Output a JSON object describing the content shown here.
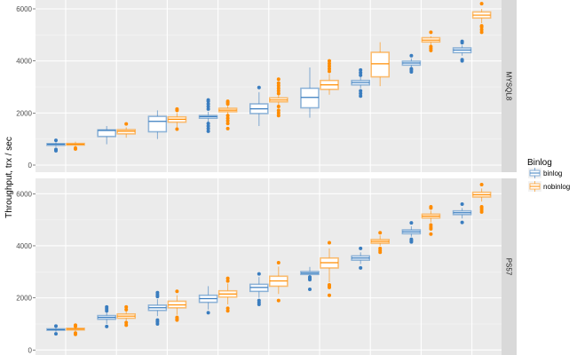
{
  "chart_data": {
    "type": "boxplot",
    "ylabel": "Throughput, trx / sec",
    "ylim": [
      -300,
      6400
    ],
    "yticks": [
      0,
      2000,
      4000,
      6000
    ],
    "grid": true,
    "legend": {
      "title": "Binlog",
      "position": "right",
      "entries": [
        "binlog",
        "nobinlog"
      ]
    },
    "colors": {
      "binlog": "#3a7dbf",
      "nobinlog": "#ff8c00",
      "panel_bg": "#ebebeb",
      "strip_bg": "#d9d9d9"
    },
    "categories_count": 9,
    "stat_order": [
      "lower_whisker",
      "q1",
      "median",
      "q3",
      "upper_whisker"
    ],
    "panels": [
      {
        "name": "MYSQL8",
        "groups": [
          {
            "binlog": {
              "stats": [
                700,
                760,
                800,
                820,
                880
              ],
              "outliers": [
                550,
                600,
                950
              ]
            },
            "nobinlog": {
              "stats": [
                720,
                770,
                800,
                830,
                900
              ],
              "outliers": [
                620,
                650
              ]
            }
          },
          {
            "binlog": {
              "stats": [
                800,
                1100,
                1330,
                1350,
                1500
              ],
              "outliers": []
            },
            "nobinlog": {
              "stats": [
                1050,
                1200,
                1300,
                1360,
                1450
              ],
              "outliers": [
                1580
              ]
            }
          },
          {
            "binlog": {
              "stats": [
                1000,
                1280,
                1680,
                1870,
                2100
              ],
              "outliers": []
            },
            "nobinlog": {
              "stats": [
                1450,
                1650,
                1760,
                1850,
                2000
              ],
              "outliers": [
                1380,
                2100,
                2150
              ]
            }
          },
          {
            "binlog": {
              "stats": [
                1650,
                1800,
                1860,
                1900,
                2050
              ],
              "outliers": [
                1300,
                1400,
                1500,
                1600,
                2150,
                2250,
                2350,
                2450,
                2500
              ]
            },
            "nobinlog": {
              "stats": [
                1950,
                2050,
                2110,
                2180,
                2300
              ],
              "outliers": [
                1400,
                1600,
                1700,
                1800,
                1900,
                2350,
                2400,
                2450
              ]
            }
          },
          {
            "binlog": {
              "stats": [
                1500,
                1980,
                2160,
                2350,
                2800
              ],
              "outliers": [
                2980
              ]
            },
            "nobinlog": {
              "stats": [
                2300,
                2430,
                2500,
                2580,
                2700
              ],
              "outliers": [
                1900,
                2000,
                2100,
                2250,
                2750,
                2850,
                2950,
                3050,
                3150,
                3300
              ]
            }
          },
          {
            "binlog": {
              "stats": [
                1820,
                2200,
                2600,
                2950,
                3750
              ],
              "outliers": []
            },
            "nobinlog": {
              "stats": [
                2700,
                2910,
                3080,
                3250,
                3500
              ],
              "outliers": [
                3600,
                3700,
                3800,
                3900,
                4000
              ]
            }
          },
          {
            "binlog": {
              "stats": [
                2950,
                3080,
                3170,
                3250,
                3400
              ],
              "outliers": [
                2650,
                2750,
                2850,
                3450,
                3550,
                3650
              ]
            },
            "nobinlog": {
              "stats": [
                3030,
                3390,
                3890,
                4330,
                4720
              ],
              "outliers": []
            }
          },
          {
            "binlog": {
              "stats": [
                3750,
                3840,
                3920,
                3990,
                4100
              ],
              "outliers": [
                3580,
                3650,
                3700,
                4200
              ]
            },
            "nobinlog": {
              "stats": [
                4600,
                4730,
                4800,
                4890,
                4950
              ],
              "outliers": [
                4400,
                4480,
                4550,
                5100
              ]
            }
          },
          {
            "binlog": {
              "stats": [
                4200,
                4320,
                4420,
                4500,
                4600
              ],
              "outliers": [
                4000,
                4050,
                4700,
                4750
              ]
            },
            "nobinlog": {
              "stats": [
                5450,
                5650,
                5760,
                5880,
                6000
              ],
              "outliers": [
                5100,
                5200,
                5300,
                5350,
                6200
              ]
            }
          }
        ]
      },
      {
        "name": "PS57",
        "groups": [
          {
            "binlog": {
              "stats": [
                700,
                760,
                780,
                810,
                880
              ],
              "outliers": [
                620,
                920
              ]
            },
            "nobinlog": {
              "stats": [
                720,
                770,
                800,
                830,
                900
              ],
              "outliers": [
                600,
                650,
                900,
                950
              ]
            }
          },
          {
            "binlog": {
              "stats": [
                1000,
                1180,
                1250,
                1320,
                1450
              ],
              "outliers": [
                900,
                1500,
                1580,
                1650
              ]
            },
            "nobinlog": {
              "stats": [
                1100,
                1220,
                1300,
                1380,
                1500
              ],
              "outliers": [
                950,
                1050,
                1550,
                1650
              ]
            }
          },
          {
            "binlog": {
              "stats": [
                1300,
                1520,
                1620,
                1720,
                1950
              ],
              "outliers": [
                1000,
                1080,
                1150,
                2050,
                2120,
                2200
              ]
            },
            "nobinlog": {
              "stats": [
                1350,
                1620,
                1730,
                1870,
                2100
              ],
              "outliers": [
                1150,
                1200,
                1250,
                2250
              ]
            }
          },
          {
            "binlog": {
              "stats": [
                1550,
                1830,
                1970,
                2100,
                2450
              ],
              "outliers": [
                1430
              ]
            },
            "nobinlog": {
              "stats": [
                1750,
                2030,
                2150,
                2270,
                2550
              ],
              "outliers": [
                1500,
                1600,
                2650,
                2750
              ]
            }
          },
          {
            "binlog": {
              "stats": [
                2000,
                2250,
                2400,
                2520,
                2800
              ],
              "outliers": [
                1750,
                1820,
                1900,
                2920
              ]
            },
            "nobinlog": {
              "stats": [
                2150,
                2450,
                2650,
                2830,
                3200
              ],
              "outliers": [
                1900,
                3350
              ]
            }
          },
          {
            "binlog": {
              "stats": [
                2850,
                2900,
                2950,
                3010,
                3190
              ],
              "outliers": [
                2330,
                2700,
                2750,
                2800
              ]
            },
            "nobinlog": {
              "stats": [
                2600,
                3150,
                3350,
                3530,
                3900
              ],
              "outliers": [
                2100,
                2400,
                2450,
                2500,
                4120
              ]
            }
          },
          {
            "binlog": {
              "stats": [
                3300,
                3450,
                3530,
                3610,
                3750
              ],
              "outliers": [
                3150,
                3900
              ]
            },
            "nobinlog": {
              "stats": [
                4000,
                4100,
                4170,
                4240,
                4400
              ],
              "outliers": [
                3750,
                3820,
                3900,
                4500
              ]
            }
          },
          {
            "binlog": {
              "stats": [
                4350,
                4465,
                4540,
                4610,
                4750
              ],
              "outliers": [
                4150,
                4200,
                4250,
                4880
              ]
            },
            "nobinlog": {
              "stats": [
                4900,
                5070,
                5140,
                5215,
                5350
              ],
              "outliers": [
                4450,
                4650,
                4720,
                4800,
                5450,
                5500
              ]
            }
          },
          {
            "binlog": {
              "stats": [
                5050,
                5200,
                5270,
                5340,
                5450
              ],
              "outliers": [
                4900,
                5600
              ]
            },
            "nobinlog": {
              "stats": [
                5700,
                5876,
                5960,
                6056,
                6200
              ],
              "outliers": [
                5300,
                5380,
                5450,
                5500,
                6350
              ]
            }
          }
        ]
      }
    ]
  }
}
